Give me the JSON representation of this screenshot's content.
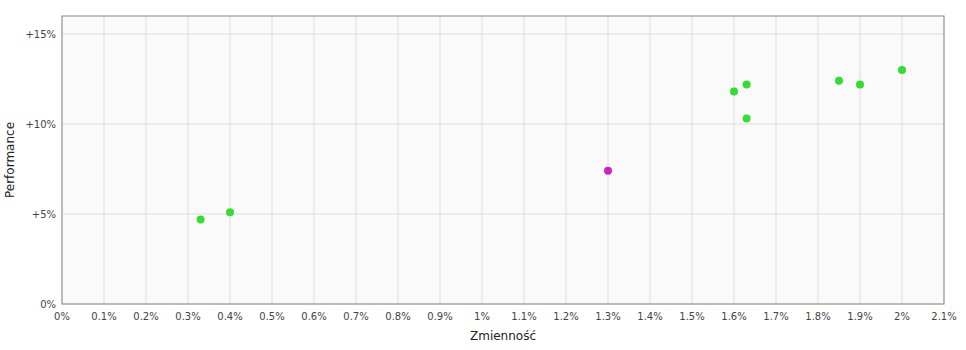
{
  "chart_data": {
    "type": "scatter",
    "x_label": "Zmienność",
    "y_label": "Performance",
    "xlim": [
      0.0,
      0.021
    ],
    "ylim": [
      0.0,
      0.16
    ],
    "xticks": [
      {
        "value": 0.0,
        "label": "0%"
      },
      {
        "value": 0.001,
        "label": "0.1%"
      },
      {
        "value": 0.002,
        "label": "0.2%"
      },
      {
        "value": 0.003,
        "label": "0.3%"
      },
      {
        "value": 0.004,
        "label": "0.4%"
      },
      {
        "value": 0.005,
        "label": "0.5%"
      },
      {
        "value": 0.006,
        "label": "0.6%"
      },
      {
        "value": 0.007,
        "label": "0.7%"
      },
      {
        "value": 0.008,
        "label": "0.8%"
      },
      {
        "value": 0.009,
        "label": "0.9%"
      },
      {
        "value": 0.01,
        "label": "1%"
      },
      {
        "value": 0.011,
        "label": "1.1%"
      },
      {
        "value": 0.012,
        "label": "1.2%"
      },
      {
        "value": 0.013,
        "label": "1.3%"
      },
      {
        "value": 0.014,
        "label": "1.4%"
      },
      {
        "value": 0.015,
        "label": "1.5%"
      },
      {
        "value": 0.016,
        "label": "1.6%"
      },
      {
        "value": 0.017,
        "label": "1.7%"
      },
      {
        "value": 0.018,
        "label": "1.8%"
      },
      {
        "value": 0.019,
        "label": "1.9%"
      },
      {
        "value": 0.02,
        "label": "2%"
      },
      {
        "value": 0.021,
        "label": "2.1%"
      }
    ],
    "yticks": [
      {
        "value": 0.0,
        "label": "0%"
      },
      {
        "value": 0.05,
        "label": "+5%"
      },
      {
        "value": 0.1,
        "label": "+10%"
      },
      {
        "value": 0.15,
        "label": "+15%"
      }
    ],
    "grid": true,
    "series": [
      {
        "color": "#33dd33",
        "x": [
          0.0033,
          0.004,
          0.016,
          0.0163,
          0.0163,
          0.019,
          0.0185,
          0.02
        ],
        "values": [
          0.047,
          0.051,
          0.118,
          0.122,
          0.103,
          0.122,
          0.124,
          0.13
        ]
      },
      {
        "color": "#cc22bb",
        "x": [
          0.013
        ],
        "values": [
          0.074
        ]
      }
    ]
  }
}
